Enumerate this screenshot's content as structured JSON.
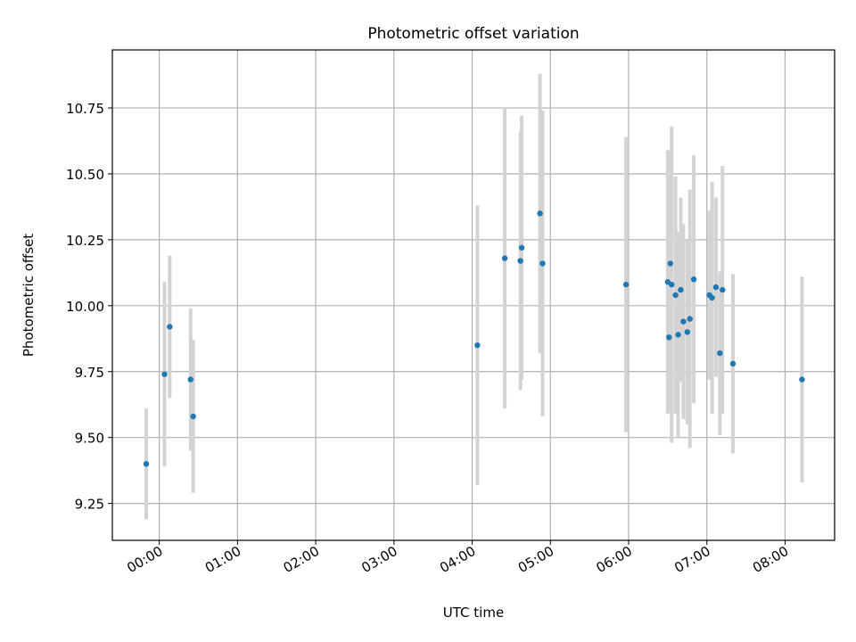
{
  "chart_data": {
    "type": "scatter",
    "title": "Photometric offset variation",
    "xlabel": "UTC time",
    "ylabel": "Photometric offset",
    "grid": true,
    "x_is_time": true,
    "xlim": [
      "23:24",
      "08:38"
    ],
    "ylim": [
      9.11,
      10.97
    ],
    "xticks": [
      "00:00",
      "01:00",
      "02:00",
      "03:00",
      "04:00",
      "05:00",
      "06:00",
      "07:00",
      "08:00"
    ],
    "yticks": [
      9.25,
      9.5,
      9.75,
      10.0,
      10.25,
      10.5,
      10.75
    ],
    "ytick_labels": [
      "9.25",
      "9.50",
      "9.75",
      "10.00",
      "10.25",
      "10.50",
      "10.75"
    ],
    "colors": {
      "point": "#1f77b4",
      "errorbar": "#d3d3d3",
      "grid": "#b0b0b0"
    },
    "points": [
      {
        "x": "23:50",
        "y": 9.4,
        "err": 0.21
      },
      {
        "x": "00:04",
        "y": 9.74,
        "err": 0.35
      },
      {
        "x": "00:08",
        "y": 9.92,
        "err": 0.27
      },
      {
        "x": "00:24",
        "y": 9.72,
        "err": 0.27
      },
      {
        "x": "00:26",
        "y": 9.58,
        "err": 0.29
      },
      {
        "x": "04:04",
        "y": 9.85,
        "err": 0.53
      },
      {
        "x": "04:25",
        "y": 10.18,
        "err": 0.57
      },
      {
        "x": "04:37",
        "y": 10.17,
        "err": 0.49
      },
      {
        "x": "04:38",
        "y": 10.22,
        "err": 0.5
      },
      {
        "x": "04:52",
        "y": 10.35,
        "err": 0.53
      },
      {
        "x": "04:54",
        "y": 10.16,
        "err": 0.58
      },
      {
        "x": "05:58",
        "y": 10.08,
        "err": 0.56
      },
      {
        "x": "06:30",
        "y": 10.09,
        "err": 0.5
      },
      {
        "x": "06:31",
        "y": 9.88,
        "err": 0.28
      },
      {
        "x": "06:32",
        "y": 10.16,
        "err": 0.43
      },
      {
        "x": "06:33",
        "y": 10.08,
        "err": 0.6
      },
      {
        "x": "06:36",
        "y": 10.04,
        "err": 0.45
      },
      {
        "x": "06:38",
        "y": 9.89,
        "err": 0.39
      },
      {
        "x": "06:40",
        "y": 10.06,
        "err": 0.35
      },
      {
        "x": "06:42",
        "y": 9.94,
        "err": 0.37
      },
      {
        "x": "06:45",
        "y": 9.9,
        "err": 0.35
      },
      {
        "x": "06:47",
        "y": 9.95,
        "err": 0.49
      },
      {
        "x": "06:50",
        "y": 10.1,
        "err": 0.47
      },
      {
        "x": "07:02",
        "y": 10.04,
        "err": 0.32
      },
      {
        "x": "07:04",
        "y": 10.03,
        "err": 0.44
      },
      {
        "x": "07:07",
        "y": 10.07,
        "err": 0.34
      },
      {
        "x": "07:10",
        "y": 9.82,
        "err": 0.31
      },
      {
        "x": "07:12",
        "y": 10.06,
        "err": 0.47
      },
      {
        "x": "07:20",
        "y": 9.78,
        "err": 0.34
      },
      {
        "x": "08:13",
        "y": 9.72,
        "err": 0.39
      }
    ]
  }
}
